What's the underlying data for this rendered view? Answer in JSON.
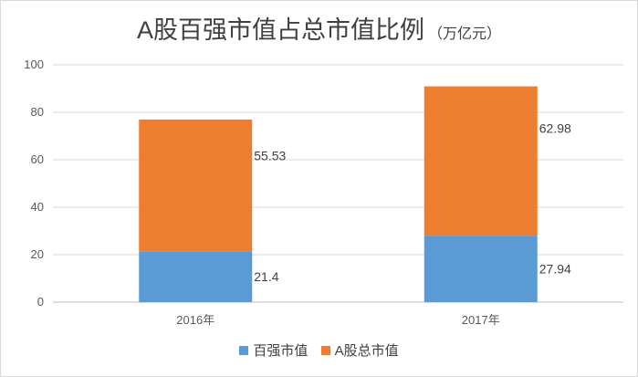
{
  "chart_data": {
    "type": "bar",
    "stacked": true,
    "title": "A股百强市值占总市值比例",
    "subtitle": "（万亿元）",
    "categories": [
      "2016年",
      "2017年"
    ],
    "series": [
      {
        "name": "百强市值",
        "values": [
          21.4,
          27.94
        ],
        "color": "#5b9bd5"
      },
      {
        "name": "A股总市值",
        "values": [
          55.53,
          62.98
        ],
        "color": "#ed7d31"
      }
    ],
    "ylim": [
      0,
      100
    ],
    "yticks": [
      "0",
      "20",
      "40",
      "60",
      "80",
      "100"
    ],
    "grid": true,
    "legend": "bottom"
  }
}
